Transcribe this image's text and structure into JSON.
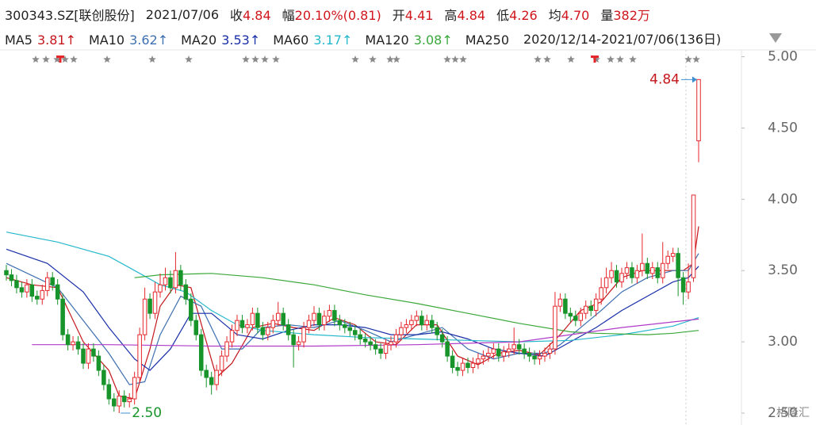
{
  "header": {
    "code": "300343.SZ[联创股份]",
    "date": "2021/07/06",
    "items": [
      {
        "label": "收",
        "value": "4.84"
      },
      {
        "label": "幅",
        "value": "20.10%(0.81)"
      },
      {
        "label": "开",
        "value": "4.41"
      },
      {
        "label": "高",
        "value": "4.84"
      },
      {
        "label": "低",
        "value": "4.26"
      },
      {
        "label": "均",
        "value": "4.70"
      },
      {
        "label": "量",
        "value": "382万"
      }
    ],
    "range": "2020/12/14-2021/07/06(136日)"
  },
  "watermark": "格隆汇",
  "chart_data": {
    "type": "candlestick",
    "ylim": [
      2.45,
      5.12
    ],
    "yticks": [
      {
        "value": 2.5,
        "label": "2.50"
      },
      {
        "value": 3,
        "label": "3.00"
      },
      {
        "value": 3.5,
        "label": "3.50"
      },
      {
        "value": 4,
        "label": "4.00"
      },
      {
        "value": 4.5,
        "label": "4.50"
      },
      {
        "value": 5,
        "label": "5.00"
      }
    ],
    "xlim": [
      0,
      135
    ],
    "up_color": "#e5262b",
    "down_color": "#17942a",
    "open": [
      3.5,
      3.47,
      3.43,
      3.38,
      3.35,
      3.4,
      3.32,
      3.3,
      3.36,
      3.45,
      3.4,
      3.3,
      3.05,
      2.98,
      3.0,
      2.95,
      2.85,
      2.95,
      2.9,
      2.8,
      2.7,
      2.6,
      2.55,
      2.62,
      2.58,
      2.6,
      2.75,
      3.05,
      3.3,
      3.2,
      3.35,
      3.4,
      3.45,
      3.38,
      3.5,
      3.4,
      3.3,
      3.15,
      3.05,
      2.8,
      2.75,
      2.7,
      2.8,
      2.9,
      3.0,
      3.08,
      3.15,
      3.1,
      3.12,
      3.2,
      3.1,
      3.05,
      3.1,
      3.15,
      3.2,
      3.12,
      3.05,
      2.98,
      3.0,
      3.1,
      3.15,
      3.2,
      3.12,
      3.18,
      3.22,
      3.15,
      3.12,
      3.1,
      3.08,
      3.05,
      3.02,
      3.0,
      2.98,
      2.95,
      2.92,
      2.98,
      3.0,
      3.05,
      3.1,
      3.12,
      3.15,
      3.18,
      3.12,
      3.15,
      3.1,
      3.05,
      3.0,
      2.9,
      2.82,
      2.8,
      2.85,
      2.82,
      2.85,
      2.88,
      2.9,
      2.92,
      2.95,
      2.9,
      2.93,
      2.95,
      2.98,
      2.95,
      2.92,
      2.9,
      2.88,
      2.9,
      2.92,
      2.95,
      3.25,
      3.3,
      3.2,
      3.18,
      3.15,
      3.2,
      3.25,
      3.22,
      3.3,
      3.38,
      3.45,
      3.5,
      3.42,
      3.48,
      3.52,
      3.45,
      3.5,
      3.55,
      3.48,
      3.52,
      3.45,
      3.55,
      3.6,
      3.62,
      3.45,
      3.35,
      3.45,
      4.41
    ],
    "high": [
      3.54,
      3.51,
      3.47,
      3.42,
      3.44,
      3.44,
      3.36,
      3.4,
      3.49,
      3.49,
      3.44,
      3.34,
      3.09,
      3.04,
      3.04,
      2.99,
      2.99,
      2.99,
      2.94,
      2.84,
      2.74,
      2.64,
      2.66,
      2.66,
      2.64,
      2.79,
      3.1,
      3.38,
      3.34,
      3.42,
      3.48,
      3.52,
      3.5,
      3.63,
      3.54,
      3.44,
      3.34,
      3.19,
      3.09,
      2.84,
      2.79,
      2.84,
      2.94,
      3.04,
      3.12,
      3.19,
      3.19,
      3.16,
      3.24,
      3.24,
      3.14,
      3.14,
      3.19,
      3.28,
      3.24,
      3.16,
      3.09,
      3.04,
      3.14,
      3.19,
      3.25,
      3.24,
      3.22,
      3.26,
      3.26,
      3.19,
      3.16,
      3.14,
      3.12,
      3.09,
      3.06,
      3.04,
      3.02,
      2.99,
      3.02,
      3.04,
      3.09,
      3.14,
      3.16,
      3.19,
      3.22,
      3.22,
      3.19,
      3.19,
      3.14,
      3.09,
      3.04,
      2.94,
      2.86,
      2.89,
      2.89,
      2.89,
      2.92,
      2.94,
      2.96,
      2.99,
      2.99,
      2.97,
      2.99,
      3.1,
      3.02,
      2.99,
      2.96,
      2.94,
      2.94,
      2.96,
      2.99,
      3.35,
      3.34,
      3.34,
      3.24,
      3.22,
      3.24,
      3.29,
      3.29,
      3.34,
      3.45,
      3.52,
      3.56,
      3.54,
      3.52,
      3.56,
      3.56,
      3.54,
      3.76,
      3.59,
      3.56,
      3.56,
      3.7,
      3.64,
      3.66,
      3.66,
      3.49,
      3.55,
      4.03,
      4.84
    ],
    "low": [
      3.43,
      3.39,
      3.34,
      3.31,
      3.31,
      3.28,
      3.26,
      3.26,
      3.32,
      3.36,
      3.26,
      3.01,
      2.94,
      2.94,
      2.91,
      2.81,
      2.81,
      2.86,
      2.76,
      2.66,
      2.56,
      2.51,
      2.5,
      2.54,
      2.54,
      2.56,
      2.71,
      3.01,
      3.16,
      3.16,
      3.31,
      3.36,
      3.34,
      3.34,
      3.36,
      3.26,
      3.11,
      3.01,
      2.76,
      2.68,
      2.63,
      2.66,
      2.76,
      2.86,
      2.96,
      3.04,
      3.06,
      3.06,
      3.08,
      3.06,
      3.01,
      3.01,
      3.06,
      3.11,
      3.08,
      3.01,
      2.82,
      2.94,
      2.96,
      3.06,
      3.11,
      3.08,
      3.08,
      3.14,
      3.11,
      3.08,
      3.06,
      3.04,
      3.01,
      2.98,
      2.96,
      2.94,
      2.91,
      2.88,
      2.88,
      2.94,
      2.96,
      3.01,
      3.06,
      3.08,
      3.11,
      3.08,
      3.08,
      3.06,
      3.01,
      2.96,
      2.86,
      2.78,
      2.76,
      2.76,
      2.78,
      2.78,
      2.81,
      2.84,
      2.86,
      2.88,
      2.86,
      2.86,
      2.89,
      2.91,
      2.91,
      2.88,
      2.86,
      2.84,
      2.84,
      2.86,
      2.88,
      2.91,
      3.21,
      3.16,
      3.14,
      3.11,
      3.11,
      3.16,
      3.18,
      3.18,
      3.26,
      3.34,
      3.41,
      3.38,
      3.38,
      3.44,
      3.41,
      3.41,
      3.46,
      3.44,
      3.44,
      3.41,
      3.41,
      3.51,
      3.56,
      3.32,
      3.26,
      3.3,
      3.42,
      4.26
    ],
    "close": [
      3.47,
      3.43,
      3.38,
      3.35,
      3.4,
      3.32,
      3.3,
      3.36,
      3.45,
      3.4,
      3.3,
      3.05,
      2.98,
      3.0,
      2.95,
      2.85,
      2.95,
      2.9,
      2.8,
      2.7,
      2.6,
      2.55,
      2.62,
      2.58,
      2.6,
      2.75,
      3.05,
      3.3,
      3.2,
      3.35,
      3.4,
      3.45,
      3.38,
      3.5,
      3.4,
      3.3,
      3.15,
      3.05,
      2.8,
      2.75,
      2.7,
      2.8,
      2.9,
      3.0,
      3.08,
      3.15,
      3.1,
      3.12,
      3.2,
      3.1,
      3.05,
      3.1,
      3.15,
      3.2,
      3.12,
      3.05,
      2.98,
      3.0,
      3.1,
      3.15,
      3.2,
      3.12,
      3.18,
      3.22,
      3.15,
      3.12,
      3.1,
      3.08,
      3.05,
      3.02,
      3.0,
      2.98,
      2.95,
      2.92,
      2.98,
      3.0,
      3.05,
      3.1,
      3.12,
      3.15,
      3.18,
      3.12,
      3.15,
      3.1,
      3.05,
      3.0,
      2.9,
      2.82,
      2.8,
      2.85,
      2.82,
      2.85,
      2.88,
      2.9,
      2.92,
      2.95,
      2.9,
      2.93,
      2.95,
      2.98,
      2.95,
      2.92,
      2.9,
      2.88,
      2.9,
      2.92,
      2.95,
      3.25,
      3.3,
      3.2,
      3.18,
      3.15,
      3.2,
      3.25,
      3.22,
      3.3,
      3.38,
      3.45,
      3.5,
      3.42,
      3.48,
      3.52,
      3.45,
      3.5,
      3.55,
      3.48,
      3.52,
      3.45,
      3.55,
      3.6,
      3.62,
      3.45,
      3.35,
      3.42,
      4.03,
      4.84
    ],
    "series": [
      {
        "name": "MA5",
        "color": "#c4161c",
        "last": 3.81,
        "trend": "↑",
        "x": [
          0,
          5,
          10,
          15,
          20,
          22,
          25,
          28,
          30,
          33,
          36,
          39,
          41,
          44,
          48,
          52,
          56,
          60,
          64,
          68,
          72,
          76,
          80,
          84,
          88,
          92,
          96,
          100,
          104,
          108,
          112,
          116,
          120,
          124,
          128,
          132,
          134,
          135
        ],
        "values": [
          3.45,
          3.4,
          3.38,
          3.0,
          2.8,
          2.62,
          2.6,
          2.95,
          3.25,
          3.4,
          3.38,
          3.0,
          2.75,
          2.85,
          3.1,
          3.13,
          3.1,
          3.08,
          3.17,
          3.12,
          3.0,
          2.98,
          3.12,
          3.12,
          2.9,
          2.84,
          2.92,
          2.94,
          2.91,
          3.05,
          3.22,
          3.28,
          3.45,
          3.5,
          3.5,
          3.5,
          3.55,
          3.81
        ]
      },
      {
        "name": "MA10",
        "color": "#3d6fb0",
        "last": 3.62,
        "trend": "↑",
        "x": [
          0,
          10,
          15,
          20,
          24,
          27,
          30,
          34,
          38,
          42,
          46,
          50,
          55,
          60,
          65,
          70,
          75,
          80,
          85,
          90,
          95,
          100,
          105,
          108,
          112,
          116,
          120,
          125,
          130,
          133,
          135
        ],
        "values": [
          3.55,
          3.38,
          3.15,
          2.92,
          2.7,
          2.72,
          3.05,
          3.32,
          3.25,
          2.95,
          2.95,
          3.1,
          3.12,
          3.1,
          3.15,
          3.08,
          3.0,
          3.05,
          3.1,
          2.95,
          2.88,
          2.92,
          2.92,
          2.98,
          3.1,
          3.22,
          3.35,
          3.45,
          3.5,
          3.5,
          3.62
        ]
      },
      {
        "name": "MA20",
        "color": "#1a2fa8",
        "last": 3.53,
        "trend": "↑",
        "x": [
          0,
          8,
          15,
          20,
          25,
          28,
          32,
          36,
          40,
          45,
          50,
          55,
          60,
          65,
          70,
          75,
          80,
          85,
          90,
          95,
          100,
          105,
          110,
          115,
          120,
          125,
          130,
          133,
          135
        ],
        "values": [
          3.65,
          3.55,
          3.35,
          3.1,
          2.88,
          2.8,
          2.95,
          3.2,
          3.2,
          3.05,
          3.02,
          3.08,
          3.12,
          3.12,
          3.1,
          3.05,
          3.05,
          3.07,
          3.02,
          2.95,
          2.92,
          2.9,
          3.0,
          3.1,
          3.22,
          3.32,
          3.42,
          3.45,
          3.53
        ]
      },
      {
        "name": "MA60",
        "color": "#25b8cc",
        "last": 3.17,
        "trend": "↑",
        "x": [
          0,
          10,
          20,
          25,
          30,
          35,
          40,
          45,
          50,
          60,
          70,
          80,
          90,
          100,
          110,
          120,
          130,
          135
        ],
        "values": [
          3.77,
          3.7,
          3.6,
          3.5,
          3.4,
          3.35,
          3.22,
          3.12,
          3.08,
          3.05,
          3.03,
          3.02,
          3.01,
          3.0,
          3.01,
          3.05,
          3.11,
          3.17
        ]
      },
      {
        "name": "MA120",
        "color": "#3aa83a",
        "last": 3.08,
        "trend": "↑",
        "x": [
          25,
          30,
          40,
          50,
          60,
          70,
          80,
          90,
          100,
          110,
          115,
          125,
          130,
          135
        ],
        "values": [
          3.45,
          3.47,
          3.48,
          3.45,
          3.4,
          3.33,
          3.27,
          3.2,
          3.13,
          3.07,
          3.06,
          3.05,
          3.06,
          3.08
        ]
      },
      {
        "name": "MA250",
        "color": "#b03cc8",
        "x": [
          5,
          20,
          40,
          60,
          80,
          90,
          100,
          110,
          120,
          130,
          135
        ],
        "values": [
          2.98,
          2.98,
          2.97,
          2.97,
          2.98,
          2.99,
          3.0,
          3.05,
          3.1,
          3.14,
          3.16
        ]
      }
    ],
    "annotations": [
      {
        "index": 135,
        "value": 4.84,
        "label": "4.84",
        "color": "#c4161c",
        "side": "left"
      },
      {
        "index": 22,
        "value": 2.5,
        "label": "2.50",
        "color": "#17942a",
        "side": "right"
      }
    ]
  }
}
